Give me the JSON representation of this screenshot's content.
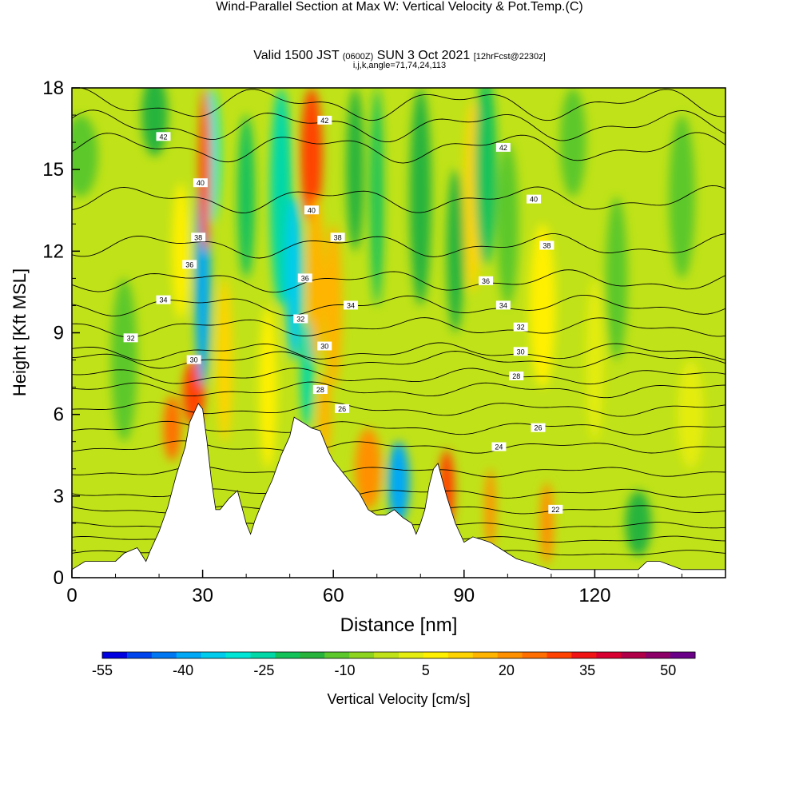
{
  "chart_data": {
    "type": "heatmap",
    "title": "Wind-Parallel Section at Max W: Vertical Velocity & Pot.Temp.",
    "title_mark": "(C)",
    "subtitle_main": "Valid 1500 JST",
    "subtitle_utc": "(0600Z)",
    "subtitle_date": "SUN 3 Oct 2021",
    "subtitle_fcst": "[12hrFcst@2230z]",
    "subtitle2": "i,j,k,angle=71,74,24,113",
    "xlabel": "Distance [nm]",
    "ylabel": "Height [Kft MSL]",
    "xlim": [
      0,
      150
    ],
    "ylim": [
      0,
      18
    ],
    "x_ticks": [
      0,
      30,
      60,
      90,
      120
    ],
    "y_ticks": [
      0,
      3,
      6,
      9,
      12,
      15,
      18
    ],
    "colorbar": {
      "label": "Vertical Velocity [cm/s]",
      "min": -55,
      "max": 55,
      "step": 5,
      "tick_values": [
        -55,
        -40,
        -25,
        -10,
        5,
        20,
        35,
        50
      ],
      "colors": [
        "#0000e0",
        "#0044ee",
        "#0077f2",
        "#00a8f5",
        "#00ccee",
        "#00e6d6",
        "#00d8a8",
        "#14c25a",
        "#28b43c",
        "#5cc82c",
        "#8cd41e",
        "#c0e218",
        "#e4ec10",
        "#fff000",
        "#ffd400",
        "#ffb400",
        "#ff9000",
        "#ff6e00",
        "#ff4200",
        "#f01414",
        "#d80030",
        "#b00048",
        "#8c0068",
        "#6a0088"
      ]
    },
    "terrain_profile": {
      "x": [
        0,
        3,
        10,
        12,
        15,
        17,
        18,
        20,
        22,
        24,
        26,
        27,
        29,
        30,
        31,
        32,
        33,
        34,
        36,
        38,
        40,
        41,
        42,
        44,
        46,
        48,
        50,
        51,
        52,
        55,
        57,
        58,
        59,
        60,
        62,
        64,
        66,
        67,
        68,
        70,
        72,
        74,
        76,
        78,
        79,
        80,
        81,
        82,
        83,
        84,
        85,
        86,
        88,
        90,
        92,
        94,
        96,
        98,
        100,
        102,
        104,
        106,
        108,
        110,
        112,
        114,
        120,
        125,
        130,
        132,
        135,
        140,
        145,
        150
      ],
      "height": [
        0.3,
        0.6,
        0.6,
        0.9,
        1.1,
        0.6,
        1.0,
        1.7,
        2.6,
        3.8,
        4.8,
        5.7,
        6.4,
        6.2,
        5.0,
        3.6,
        2.5,
        2.5,
        2.9,
        3.2,
        2.0,
        1.6,
        2.1,
        2.9,
        3.6,
        4.5,
        5.2,
        5.9,
        5.8,
        5.5,
        5.4,
        5.0,
        4.6,
        4.3,
        3.9,
        3.5,
        3.1,
        2.8,
        2.5,
        2.3,
        2.3,
        2.5,
        2.2,
        2.0,
        1.6,
        2.0,
        2.5,
        3.4,
        4.0,
        4.2,
        3.6,
        3.0,
        2.0,
        1.3,
        1.5,
        1.4,
        1.3,
        1.1,
        0.9,
        0.7,
        0.6,
        0.5,
        0.4,
        0.3,
        0.3,
        0.3,
        0.3,
        0.3,
        0.3,
        0.6,
        0.6,
        0.3,
        0.3,
        0.3
      ]
    },
    "w_features": [
      {
        "x": 2,
        "y": 15.5,
        "rx": 4,
        "ry": 1.5,
        "w": -10
      },
      {
        "x": 12,
        "y": 8,
        "rx": 3,
        "ry": 3,
        "w": -8
      },
      {
        "x": 19,
        "y": 17,
        "rx": 3,
        "ry": 1.5,
        "w": -12
      },
      {
        "x": 25,
        "y": 12,
        "rx": 2,
        "ry": 2.5,
        "w": 10
      },
      {
        "x": 28,
        "y": 6.8,
        "rx": 2.5,
        "ry": 1.2,
        "w": 38
      },
      {
        "x": 23,
        "y": 5.5,
        "rx": 2,
        "ry": 1.2,
        "w": 30
      },
      {
        "x": 30,
        "y": 11,
        "rx": 1.8,
        "ry": 4,
        "w": -38
      },
      {
        "x": 32,
        "y": 15.5,
        "rx": 2,
        "ry": 2.5,
        "w": -30
      },
      {
        "x": 30.5,
        "y": 15,
        "rx": 1.3,
        "ry": 3,
        "w": 38
      },
      {
        "x": 35,
        "y": 8,
        "rx": 1.8,
        "ry": 3,
        "w": 15
      },
      {
        "x": 40,
        "y": 14,
        "rx": 2,
        "ry": 3,
        "w": -18
      },
      {
        "x": 45,
        "y": 7,
        "rx": 2,
        "ry": 3,
        "w": 10
      },
      {
        "x": 48,
        "y": 14,
        "rx": 2.5,
        "ry": 4,
        "w": -25
      },
      {
        "x": 51,
        "y": 11,
        "rx": 2,
        "ry": 3,
        "w": -35
      },
      {
        "x": 55,
        "y": 15.5,
        "rx": 2.5,
        "ry": 2.5,
        "w": 38
      },
      {
        "x": 56,
        "y": 11,
        "rx": 2,
        "ry": 3,
        "w": 20
      },
      {
        "x": 54,
        "y": 7.5,
        "rx": 1.5,
        "ry": 2,
        "w": -25
      },
      {
        "x": 60,
        "y": 10,
        "rx": 2,
        "ry": 3,
        "w": 20
      },
      {
        "x": 58,
        "y": 6,
        "rx": 1.5,
        "ry": 1.5,
        "w": 20
      },
      {
        "x": 65,
        "y": 15,
        "rx": 2,
        "ry": 3,
        "w": -15
      },
      {
        "x": 70,
        "y": 14,
        "rx": 1.5,
        "ry": 4,
        "w": -20
      },
      {
        "x": 68,
        "y": 4,
        "rx": 3,
        "ry": 1.5,
        "w": 25
      },
      {
        "x": 75,
        "y": 3.5,
        "rx": 2.5,
        "ry": 1.5,
        "w": -40
      },
      {
        "x": 80,
        "y": 14,
        "rx": 2.5,
        "ry": 4,
        "w": -15
      },
      {
        "x": 86,
        "y": 3.2,
        "rx": 1.8,
        "ry": 1.5,
        "w": 36
      },
      {
        "x": 88,
        "y": 12,
        "rx": 2,
        "ry": 3,
        "w": -12
      },
      {
        "x": 92,
        "y": 14,
        "rx": 2,
        "ry": 3.5,
        "w": 18
      },
      {
        "x": 95,
        "y": 15,
        "rx": 2.5,
        "ry": 3.5,
        "w": -18
      },
      {
        "x": 96,
        "y": 2.5,
        "rx": 1.2,
        "ry": 1.5,
        "w": 25
      },
      {
        "x": 100,
        "y": 13,
        "rx": 2.5,
        "ry": 3,
        "w": -10
      },
      {
        "x": 108,
        "y": 10,
        "rx": 3,
        "ry": 3,
        "w": 12
      },
      {
        "x": 109,
        "y": 2,
        "rx": 1.5,
        "ry": 1.5,
        "w": 25
      },
      {
        "x": 115,
        "y": 16,
        "rx": 3,
        "ry": 2,
        "w": -8
      },
      {
        "x": 120,
        "y": 8,
        "rx": 2,
        "ry": 3,
        "w": 8
      },
      {
        "x": 125,
        "y": 11,
        "rx": 2.5,
        "ry": 3,
        "w": -8
      },
      {
        "x": 130,
        "y": 2,
        "rx": 3,
        "ry": 1.2,
        "w": -14
      },
      {
        "x": 140,
        "y": 14,
        "rx": 3,
        "ry": 3,
        "w": -8
      },
      {
        "x": 142,
        "y": 6,
        "rx": 3,
        "ry": 2,
        "w": 6
      }
    ],
    "theta_contours": [
      {
        "y": 0.9,
        "label": ""
      },
      {
        "y": 1.4,
        "label": ""
      },
      {
        "y": 1.9,
        "label": ""
      },
      {
        "y": 2.5,
        "label": "22",
        "label_x": 111
      },
      {
        "y": 3.1,
        "label": ""
      },
      {
        "y": 3.9,
        "label": ""
      },
      {
        "y": 4.8,
        "label": "24",
        "label_x": 98
      },
      {
        "y": 5.5,
        "label": "26",
        "label_x": 107
      },
      {
        "y": 6.2,
        "label": "26",
        "label_x": 62
      },
      {
        "y": 6.9,
        "label": "28",
        "label_x": 57
      },
      {
        "y": 7.4,
        "label": "28",
        "label_x": 102
      },
      {
        "y": 8.0,
        "label": "30",
        "label_x": 28
      },
      {
        "y": 8.3,
        "label": "30",
        "label_x": 103
      },
      {
        "y": 9.2,
        "label": "32",
        "label_x": 103
      },
      {
        "y": 10.0,
        "label": "34",
        "label_x": 99
      },
      {
        "y": 10.9,
        "label": "36",
        "label_x": 95
      },
      {
        "y": 12.2,
        "label": "38",
        "label_x": 109
      },
      {
        "y": 13.9,
        "label": "40",
        "label_x": 106
      },
      {
        "y": 15.8,
        "label": "42",
        "label_x": 99
      },
      {
        "y": 16.6,
        "label": ""
      },
      {
        "y": 17.4,
        "label": ""
      }
    ],
    "extra_contour_labels": [
      {
        "x": 21,
        "y": 16.2,
        "text": "42"
      },
      {
        "x": 29.5,
        "y": 14.5,
        "text": "40"
      },
      {
        "x": 29,
        "y": 12.5,
        "text": "38"
      },
      {
        "x": 27,
        "y": 11.5,
        "text": "36"
      },
      {
        "x": 21,
        "y": 10.2,
        "text": "34"
      },
      {
        "x": 13.5,
        "y": 8.8,
        "text": "32"
      },
      {
        "x": 58,
        "y": 16.8,
        "text": "42"
      },
      {
        "x": 55,
        "y": 13.5,
        "text": "40"
      },
      {
        "x": 61,
        "y": 12.5,
        "text": "38"
      },
      {
        "x": 53.5,
        "y": 11.0,
        "text": "36"
      },
      {
        "x": 64,
        "y": 10.0,
        "text": "34"
      },
      {
        "x": 52.5,
        "y": 9.5,
        "text": "32"
      },
      {
        "x": 58,
        "y": 8.5,
        "text": "30"
      }
    ]
  }
}
